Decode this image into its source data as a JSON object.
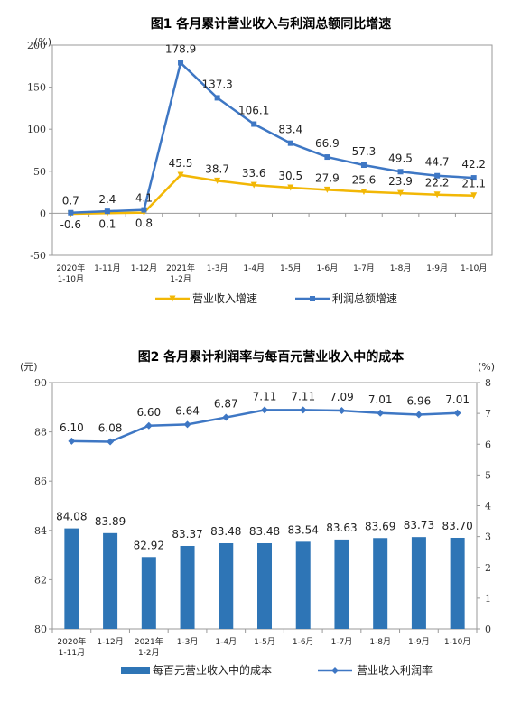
{
  "chart_data": [
    {
      "type": "line",
      "title": "图1  各月累计营业收入与利润总额同比增速",
      "y_unit": "(%)",
      "ylim": [
        -50,
        200
      ],
      "yticks": [
        -50,
        0,
        50,
        100,
        150,
        200
      ],
      "grid": false,
      "legend_position": "bottom",
      "categories": [
        [
          "2020年",
          "1-10月"
        ],
        [
          "1-11月"
        ],
        [
          "1-12月"
        ],
        [
          "2021年",
          "1-2月"
        ],
        [
          "1-3月"
        ],
        [
          "1-4月"
        ],
        [
          "1-5月"
        ],
        [
          "1-6月"
        ],
        [
          "1-7月"
        ],
        [
          "1-8月"
        ],
        [
          "1-9月"
        ],
        [
          "1-10月"
        ]
      ],
      "series": [
        {
          "name": "营业收入增速",
          "color": "#F2B705",
          "values": [
            -0.6,
            0.1,
            0.8,
            45.5,
            38.7,
            33.6,
            30.5,
            27.9,
            25.6,
            23.9,
            22.2,
            21.1
          ],
          "labels": [
            "-0.6",
            "0.1",
            "0.8",
            "45.5",
            "38.7",
            "33.6",
            "30.5",
            "27.9",
            "25.6",
            "23.9",
            "22.2",
            "21.1"
          ]
        },
        {
          "name": "利润总额增速",
          "color": "#3E77C4",
          "values": [
            0.7,
            2.4,
            4.1,
            178.9,
            137.3,
            106.1,
            83.4,
            66.9,
            57.3,
            49.5,
            44.7,
            42.2
          ],
          "labels": [
            "0.7",
            "2.4",
            "4.1",
            "178.9",
            "137.3",
            "106.1",
            "83.4",
            "66.9",
            "57.3",
            "49.5",
            "44.7",
            "42.2"
          ]
        }
      ]
    },
    {
      "type": "bar",
      "title": "图2  各月累计利润率与每百元营业收入中的成本",
      "y_unit_left": "(元)",
      "y_unit_right": "(%)",
      "ylim_left": [
        80,
        90
      ],
      "yticks_left": [
        80,
        82,
        84,
        86,
        88,
        90
      ],
      "ylim_right": [
        0,
        8
      ],
      "yticks_right": [
        0,
        1,
        2,
        3,
        4,
        5,
        6,
        7,
        8
      ],
      "grid": false,
      "legend_position": "bottom",
      "categories": [
        [
          "2020年",
          "1-11月"
        ],
        [
          "1-12月"
        ],
        [
          "2021年",
          "1-2月"
        ],
        [
          "1-3月"
        ],
        [
          "1-4月"
        ],
        [
          "1-5月"
        ],
        [
          "1-6月"
        ],
        [
          "1-7月"
        ],
        [
          "1-8月"
        ],
        [
          "1-9月"
        ],
        [
          "1-10月"
        ]
      ],
      "series": [
        {
          "name": "每百元营业收入中的成本",
          "type": "bar",
          "axis": "left",
          "color": "#2E75B6",
          "values": [
            84.08,
            83.89,
            82.92,
            83.37,
            83.48,
            83.48,
            83.54,
            83.63,
            83.69,
            83.73,
            83.7
          ],
          "labels": [
            "84.08",
            "83.89",
            "82.92",
            "83.37",
            "83.48",
            "83.48",
            "83.54",
            "83.63",
            "83.69",
            "83.73",
            "83.70"
          ]
        },
        {
          "name": "营业收入利润率",
          "type": "line",
          "axis": "right",
          "color": "#3E77C4",
          "values": [
            6.1,
            6.08,
            6.6,
            6.64,
            6.87,
            7.11,
            7.11,
            7.09,
            7.01,
            6.96,
            7.01
          ],
          "labels": [
            "6.10",
            "6.08",
            "6.60",
            "6.64",
            "6.87",
            "7.11",
            "7.11",
            "7.09",
            "7.01",
            "6.96",
            "7.01"
          ]
        }
      ]
    }
  ]
}
